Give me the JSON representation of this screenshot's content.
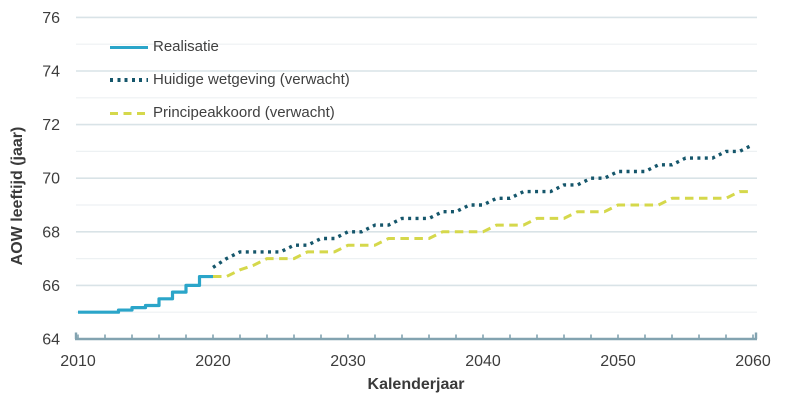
{
  "chart_data": {
    "type": "line",
    "title": "",
    "xlabel": "Kalenderjaar",
    "ylabel": "AOW leeftijd (jaar)",
    "xlim": [
      2010,
      2060
    ],
    "ylim": [
      64,
      76
    ],
    "x_ticks": [
      2010,
      2020,
      2030,
      2040,
      2050,
      2060
    ],
    "x_minor_tick_step": 2,
    "y_ticks": [
      64,
      66,
      68,
      70,
      72,
      74,
      76
    ],
    "grid": "horizontal lines every 1 year-unit, stronger at even values, no vertical grid",
    "legend_position": "top-left inside plot",
    "colors": {
      "axis": "#82a3b0",
      "grid_major": "#d9e3e7",
      "grid_minor": "#edf1f3",
      "tick_text": "#3d3d3d",
      "background": "#ffffff"
    },
    "series": [
      {
        "name": "Realisatie",
        "color": "#2ba5c9",
        "style": "solid",
        "line_shape": "step-after",
        "x": [
          2010,
          2011,
          2012,
          2013,
          2014,
          2015,
          2016,
          2017,
          2018,
          2019
        ],
        "values": [
          65,
          65,
          65,
          65.08,
          65.17,
          65.25,
          65.5,
          65.75,
          66,
          66.33
        ],
        "hold_until": 2020
      },
      {
        "name": "Huidige wetgeving (verwacht)",
        "color": "#15566b",
        "style": "dotted",
        "line_shape": "linear",
        "x": [
          2020,
          2021,
          2022,
          2023,
          2024,
          2025,
          2026,
          2027,
          2028,
          2029,
          2030,
          2031,
          2032,
          2033,
          2034,
          2035,
          2036,
          2037,
          2038,
          2039,
          2040,
          2041,
          2042,
          2043,
          2044,
          2045,
          2046,
          2047,
          2048,
          2049,
          2050,
          2051,
          2052,
          2053,
          2054,
          2055,
          2056,
          2057,
          2058,
          2059,
          2060
        ],
        "values": [
          66.67,
          67,
          67.25,
          67.25,
          67.25,
          67.25,
          67.5,
          67.5,
          67.75,
          67.75,
          68,
          68,
          68.25,
          68.25,
          68.5,
          68.5,
          68.5,
          68.75,
          68.75,
          69,
          69,
          69.25,
          69.25,
          69.5,
          69.5,
          69.5,
          69.75,
          69.75,
          70,
          70,
          70.25,
          70.25,
          70.25,
          70.5,
          70.5,
          70.75,
          70.75,
          70.75,
          71,
          71,
          71.25
        ]
      },
      {
        "name": "Principeakkoord (verwacht)",
        "color": "#d5d84b",
        "style": "dashed",
        "line_shape": "linear",
        "x": [
          2020,
          2021,
          2022,
          2023,
          2024,
          2025,
          2026,
          2027,
          2028,
          2029,
          2030,
          2031,
          2032,
          2033,
          2034,
          2035,
          2036,
          2037,
          2038,
          2039,
          2040,
          2041,
          2042,
          2043,
          2044,
          2045,
          2046,
          2047,
          2048,
          2049,
          2050,
          2051,
          2052,
          2053,
          2054,
          2055,
          2056,
          2057,
          2058,
          2059,
          2060
        ],
        "values": [
          66.33,
          66.33,
          66.58,
          66.75,
          67,
          67,
          67,
          67.25,
          67.25,
          67.25,
          67.5,
          67.5,
          67.5,
          67.75,
          67.75,
          67.75,
          67.75,
          68,
          68,
          68,
          68,
          68.25,
          68.25,
          68.25,
          68.5,
          68.5,
          68.5,
          68.75,
          68.75,
          68.75,
          69,
          69,
          69,
          69,
          69.25,
          69.25,
          69.25,
          69.25,
          69.25,
          69.5,
          69.5
        ]
      }
    ]
  }
}
